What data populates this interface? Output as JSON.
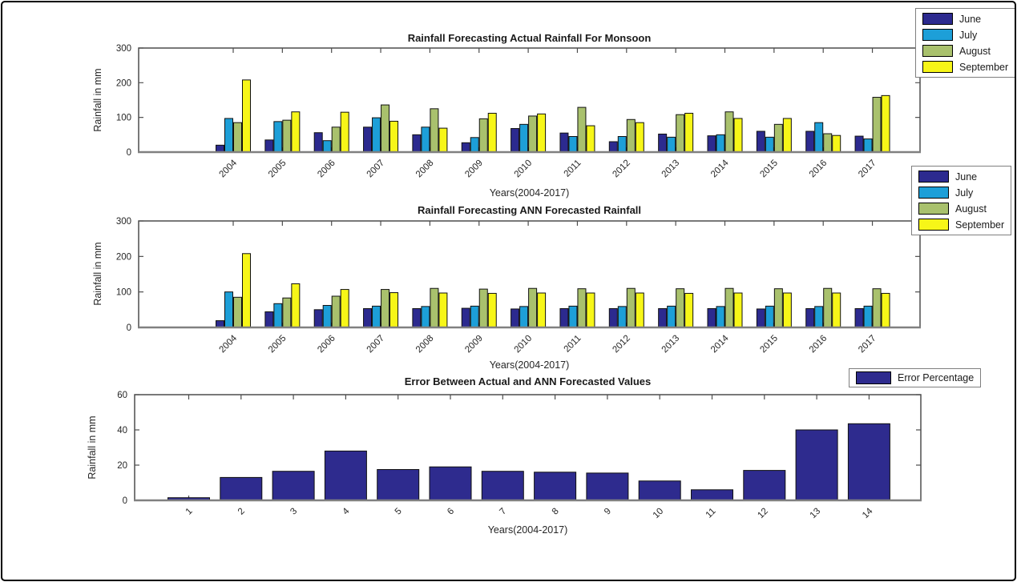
{
  "figure": {
    "background": "#ffffff",
    "border_color": "#000000"
  },
  "chart_data": [
    {
      "id": "actual",
      "type": "bar",
      "title": "Rainfall Forecasting Actual Rainfall For Monsoon",
      "xlabel": "Years(2004-2017)",
      "ylabel": "Rainfall in mm",
      "categories": [
        "2004",
        "2005",
        "2006",
        "2007",
        "2008",
        "2009",
        "2010",
        "2011",
        "2012",
        "2013",
        "2014",
        "2015",
        "2016",
        "2017"
      ],
      "series": [
        {
          "name": "June",
          "color": "#2c2a8f",
          "values": [
            20,
            35,
            56,
            72,
            50,
            27,
            68,
            55,
            30,
            52,
            47,
            60,
            60,
            46
          ]
        },
        {
          "name": "July",
          "color": "#1d9fd8",
          "values": [
            97,
            88,
            33,
            99,
            72,
            42,
            80,
            45,
            45,
            43,
            50,
            43,
            85,
            38
          ]
        },
        {
          "name": "August",
          "color": "#a9c16d",
          "values": [
            85,
            92,
            72,
            136,
            125,
            96,
            104,
            129,
            94,
            108,
            116,
            80,
            53,
            158
          ]
        },
        {
          "name": "September",
          "color": "#f7f618",
          "values": [
            208,
            116,
            115,
            89,
            69,
            112,
            110,
            76,
            85,
            112,
            97,
            97,
            48,
            163
          ]
        }
      ],
      "ylim": [
        0,
        300
      ],
      "yticks": [
        0,
        100,
        200,
        300
      ],
      "grid": false,
      "legend_position": "top-right-overlapping"
    },
    {
      "id": "ann",
      "type": "bar",
      "title": "Rainfall Forecasting ANN Forecasted Rainfall",
      "xlabel": "Years(2004-2017)",
      "ylabel": "Rainfall in mm",
      "categories": [
        "2004",
        "2005",
        "2006",
        "2007",
        "2008",
        "2009",
        "2010",
        "2011",
        "2012",
        "2013",
        "2014",
        "2015",
        "2016",
        "2017"
      ],
      "series": [
        {
          "name": "June",
          "color": "#2c2a8f",
          "values": [
            19,
            44,
            50,
            53,
            53,
            54,
            52,
            53,
            53,
            53,
            53,
            52,
            53,
            53
          ]
        },
        {
          "name": "July",
          "color": "#1d9fd8",
          "values": [
            100,
            67,
            62,
            60,
            59,
            60,
            59,
            60,
            59,
            60,
            59,
            60,
            59,
            60
          ]
        },
        {
          "name": "August",
          "color": "#a9c16d",
          "values": [
            85,
            83,
            88,
            107,
            110,
            108,
            110,
            109,
            110,
            109,
            110,
            109,
            110,
            109
          ]
        },
        {
          "name": "September",
          "color": "#f7f618",
          "values": [
            208,
            123,
            107,
            98,
            97,
            96,
            97,
            97,
            97,
            96,
            97,
            97,
            97,
            96
          ]
        }
      ],
      "ylim": [
        0,
        300
      ],
      "yticks": [
        0,
        100,
        200,
        300
      ],
      "grid": false,
      "legend_position": "top-right-overlapping"
    },
    {
      "id": "error",
      "type": "bar",
      "title": "Error Between Actual and ANN Forecasted Values",
      "xlabel": "Years(2004-2017)",
      "ylabel": "Rainfall in mm",
      "categories": [
        "1",
        "2",
        "3",
        "4",
        "5",
        "6",
        "7",
        "8",
        "9",
        "10",
        "11",
        "12",
        "13",
        "14"
      ],
      "series": [
        {
          "name": "Error Percentage",
          "color": "#2e2b8e",
          "values": [
            1.5,
            13,
            16.5,
            28,
            17.5,
            19,
            16.5,
            16,
            15.5,
            11,
            6,
            17,
            40,
            43.5
          ]
        }
      ],
      "ylim": [
        0,
        60
      ],
      "yticks": [
        0,
        20,
        40,
        60
      ],
      "grid": false,
      "legend_position": "top-right-outside"
    }
  ]
}
